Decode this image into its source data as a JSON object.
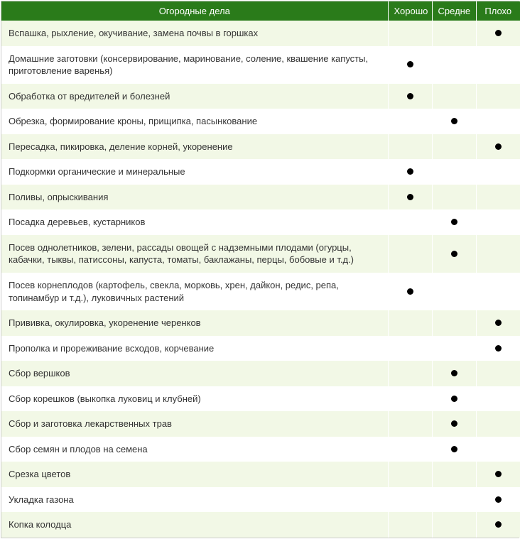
{
  "table": {
    "header_bg": "#2a7b1a",
    "row_even_bg": "#f2f8e6",
    "row_odd_bg": "#ffffff",
    "text_color": "#333333",
    "dot_color": "#000000",
    "columns": {
      "activity": "Огородные дела",
      "good": "Хорошо",
      "medium": "Средне",
      "bad": "Плохо"
    },
    "rows": [
      {
        "activity": "Вспашка, рыхление, окучивание, замена почвы в горшках",
        "rating": "bad"
      },
      {
        "activity": "Домашние заготовки (консервирование, маринование, соление, квашение капусты, приготовление варенья)",
        "rating": "good"
      },
      {
        "activity": "Обработка от вредителей и болезней",
        "rating": "good"
      },
      {
        "activity": "Обрезка, формирование кроны, прищипка, пасынкование",
        "rating": "medium"
      },
      {
        "activity": "Пересадка, пикировка, деление корней, укоренение",
        "rating": "bad"
      },
      {
        "activity": "Подкормки органические и минеральные",
        "rating": "good"
      },
      {
        "activity": "Поливы, опрыскивания",
        "rating": "good"
      },
      {
        "activity": "Посадка деревьев, кустарников",
        "rating": "medium"
      },
      {
        "activity": "Посев однолетников, зелени, рассады овощей с надземными плодами (огурцы, кабачки, тыквы, патиссоны, капуста, томаты, баклажаны, перцы, бобовые и т.д.)",
        "rating": "medium"
      },
      {
        "activity": "Посев корнеплодов (картофель, свекла, морковь, хрен, дайкон, редис, репа, топинамбур и т.д.), луковичных растений",
        "rating": "good"
      },
      {
        "activity": "Прививка, окулировка, укоренение черенков",
        "rating": "bad"
      },
      {
        "activity": "Прополка и прореживание всходов, корчевание",
        "rating": "bad"
      },
      {
        "activity": "Сбор вершков",
        "rating": "medium"
      },
      {
        "activity": "Сбор корешков (выкопка луковиц и клубней)",
        "rating": "medium"
      },
      {
        "activity": "Сбор и заготовка лекарственных трав",
        "rating": "medium"
      },
      {
        "activity": "Сбор семян и плодов на семена",
        "rating": "medium"
      },
      {
        "activity": "Срезка цветов",
        "rating": "bad"
      },
      {
        "activity": "Укладка газона",
        "rating": "bad"
      },
      {
        "activity": "Копка колодца",
        "rating": "bad"
      }
    ]
  }
}
